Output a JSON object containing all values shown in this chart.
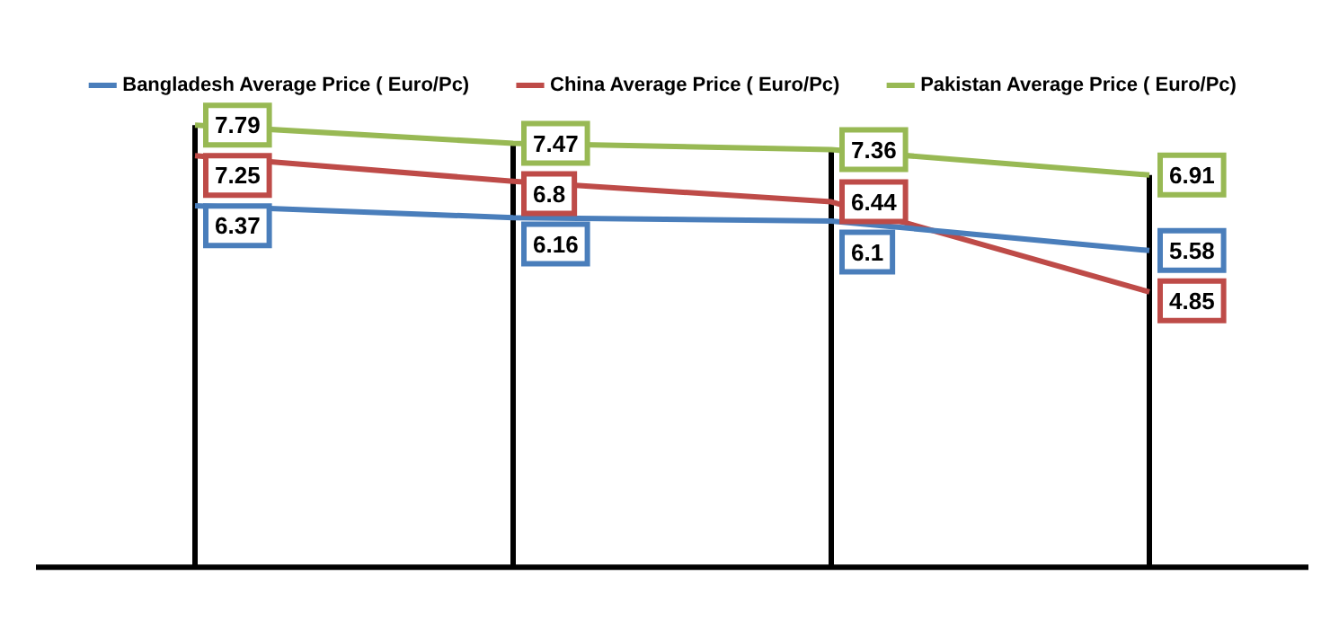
{
  "chart_data": {
    "type": "line",
    "categories": [
      null,
      null,
      null,
      null
    ],
    "series": [
      {
        "name": "Bangladesh Average Price ( Euro/Pc)",
        "color": "#4a7ebb",
        "values": [
          6.37,
          6.16,
          6.1,
          5.58
        ]
      },
      {
        "name": "China Average Price ( Euro/Pc)",
        "color": "#be4b48",
        "values": [
          7.25,
          6.8,
          6.44,
          4.85
        ]
      },
      {
        "name": "Pakistan Average Price ( Euro/Pc)",
        "color": "#98b954",
        "values": [
          7.79,
          7.47,
          7.36,
          6.91
        ]
      }
    ],
    "grid": "x",
    "legend": "top",
    "marker": "none",
    "line_style": "solid",
    "data_labels": true
  }
}
